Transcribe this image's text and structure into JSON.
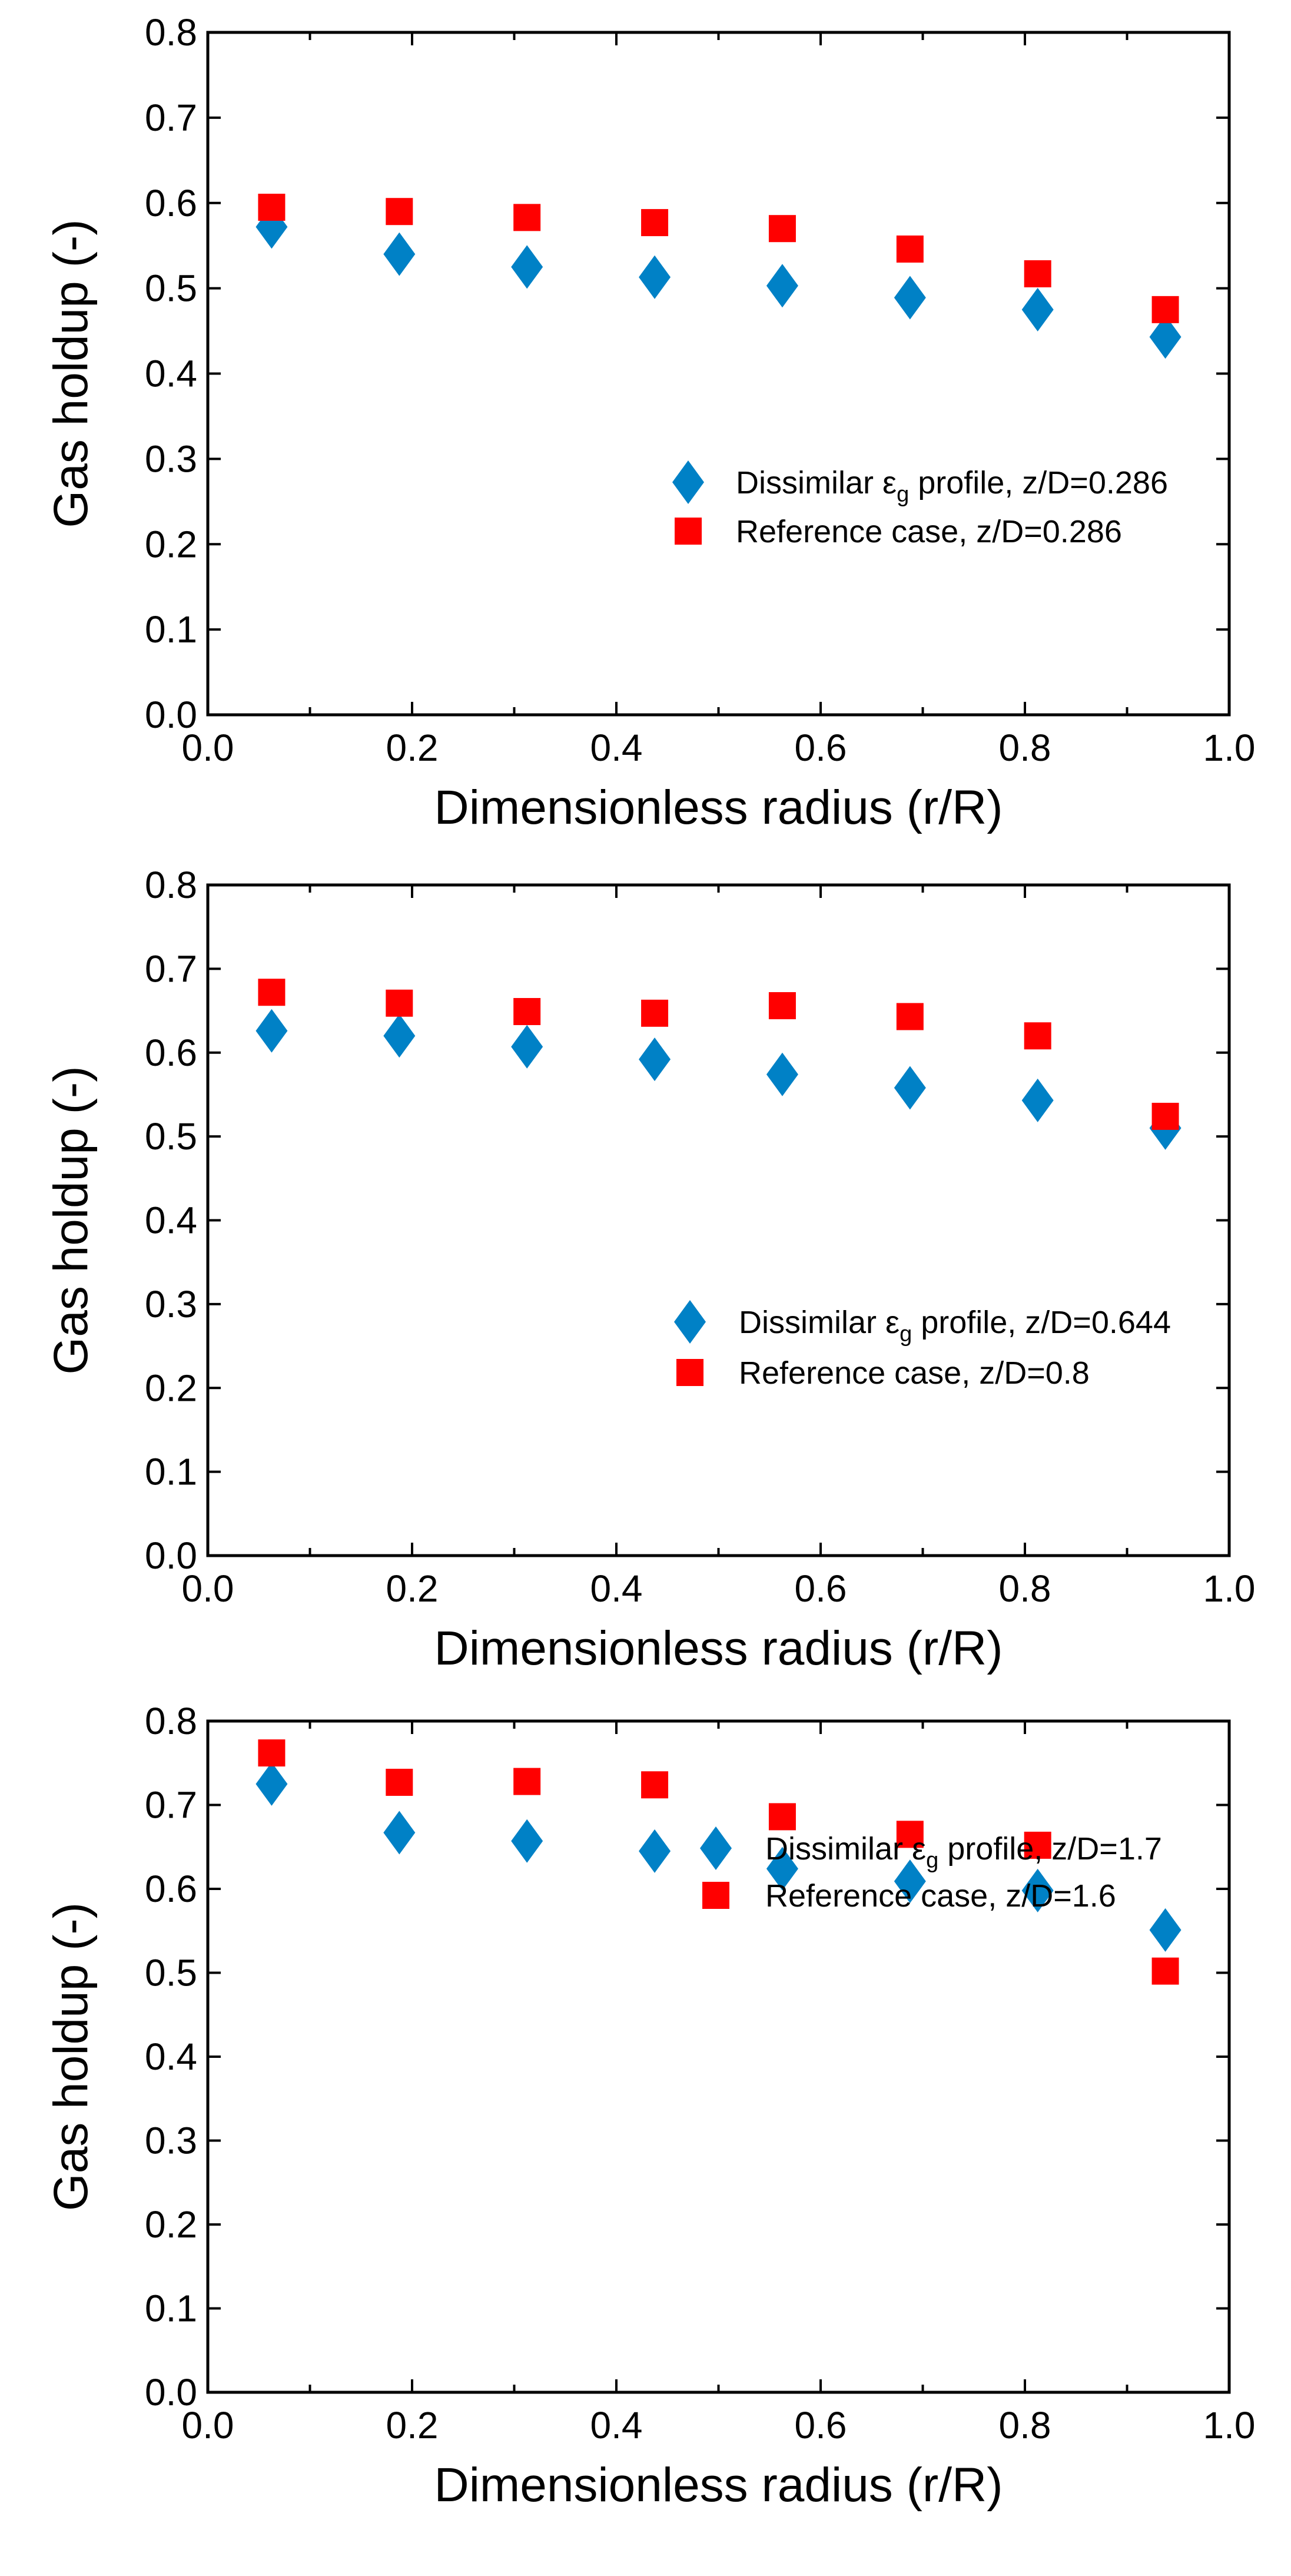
{
  "colors": {
    "dissimilar": "#0081C6",
    "reference": "#FF0000"
  },
  "chart_data": [
    {
      "type": "scatter",
      "xlabel": "Dimensionless radius (r/R)",
      "ylabel": "Gas holdup (-)",
      "xlim": [
        0,
        1.0
      ],
      "ylim": [
        0,
        0.8
      ],
      "xticks": [
        "0.0",
        "0.2",
        "0.4",
        "0.6",
        "0.8",
        "1.0"
      ],
      "yticks": [
        "0.0",
        "0.1",
        "0.2",
        "0.3",
        "0.4",
        "0.5",
        "0.6",
        "0.7",
        "0.8"
      ],
      "legend_placement": "center-right",
      "series": [
        {
          "name": "Dissimilar",
          "legend_prefix": "Dissimilar ",
          "legend_symbol": "ε",
          "legend_sub": "g",
          "legend_suffix": " profile, z/D=0.286",
          "marker": "diamond",
          "x": [
            0.0625,
            0.1875,
            0.3125,
            0.4375,
            0.5625,
            0.6875,
            0.8125,
            0.9375
          ],
          "y": [
            0.572,
            0.54,
            0.525,
            0.513,
            0.503,
            0.489,
            0.475,
            0.443
          ]
        },
        {
          "name": "Reference case, z/D=0.286",
          "marker": "square",
          "x": [
            0.0625,
            0.1875,
            0.3125,
            0.4375,
            0.5625,
            0.6875,
            0.8125,
            0.9375
          ],
          "y": [
            0.595,
            0.59,
            0.583,
            0.577,
            0.57,
            0.546,
            0.517,
            0.475
          ]
        }
      ]
    },
    {
      "type": "scatter",
      "xlabel": "Dimensionless radius (r/R)",
      "ylabel": "Gas holdup (-)",
      "xlim": [
        0,
        1.0
      ],
      "ylim": [
        0,
        0.8
      ],
      "xticks": [
        "0.0",
        "0.2",
        "0.4",
        "0.6",
        "0.8",
        "1.0"
      ],
      "yticks": [
        "0.0",
        "0.1",
        "0.2",
        "0.3",
        "0.4",
        "0.5",
        "0.6",
        "0.7",
        "0.8"
      ],
      "legend_placement": "center-right",
      "series": [
        {
          "name": "Dissimilar",
          "legend_prefix": "Dissimilar ",
          "legend_symbol": "ε",
          "legend_sub": "g",
          "legend_suffix": " profile, z/D=0.644",
          "marker": "diamond",
          "x": [
            0.0625,
            0.1875,
            0.3125,
            0.4375,
            0.5625,
            0.6875,
            0.8125,
            0.9375
          ],
          "y": [
            0.626,
            0.62,
            0.607,
            0.592,
            0.574,
            0.558,
            0.543,
            0.51
          ]
        },
        {
          "name": "Reference case, z/D=0.8",
          "marker": "square",
          "x": [
            0.0625,
            0.1875,
            0.3125,
            0.4375,
            0.5625,
            0.6875,
            0.8125,
            0.9375
          ],
          "y": [
            0.672,
            0.659,
            0.649,
            0.647,
            0.656,
            0.643,
            0.62,
            0.524
          ]
        }
      ]
    },
    {
      "type": "scatter",
      "xlabel": "Dimensionless radius (r/R)",
      "ylabel": "Gas holdup (-)",
      "xlim": [
        0,
        1.0
      ],
      "ylim": [
        0,
        0.8
      ],
      "xticks": [
        "0.0",
        "0.2",
        "0.4",
        "0.6",
        "0.8",
        "1.0"
      ],
      "yticks": [
        "0.0",
        "0.1",
        "0.2",
        "0.3",
        "0.4",
        "0.5",
        "0.6",
        "0.7",
        "0.8"
      ],
      "legend_placement": "lower-right",
      "series": [
        {
          "name": "Dissimilar",
          "legend_prefix": "Dissimilar ",
          "legend_symbol": "ε",
          "legend_sub": "g",
          "legend_suffix": " profile, z/D=1.7",
          "marker": "diamond",
          "x": [
            0.0625,
            0.1875,
            0.3125,
            0.4375,
            0.5625,
            0.6875,
            0.8125,
            0.9375
          ],
          "y": [
            0.725,
            0.667,
            0.657,
            0.645,
            0.624,
            0.609,
            0.598,
            0.551
          ]
        },
        {
          "name": "Reference case, z/D=1.6",
          "marker": "square",
          "x": [
            0.0625,
            0.1875,
            0.3125,
            0.4375,
            0.5625,
            0.6875,
            0.8125,
            0.9375
          ],
          "y": [
            0.762,
            0.727,
            0.728,
            0.724,
            0.686,
            0.665,
            0.652,
            0.502
          ]
        }
      ]
    }
  ]
}
